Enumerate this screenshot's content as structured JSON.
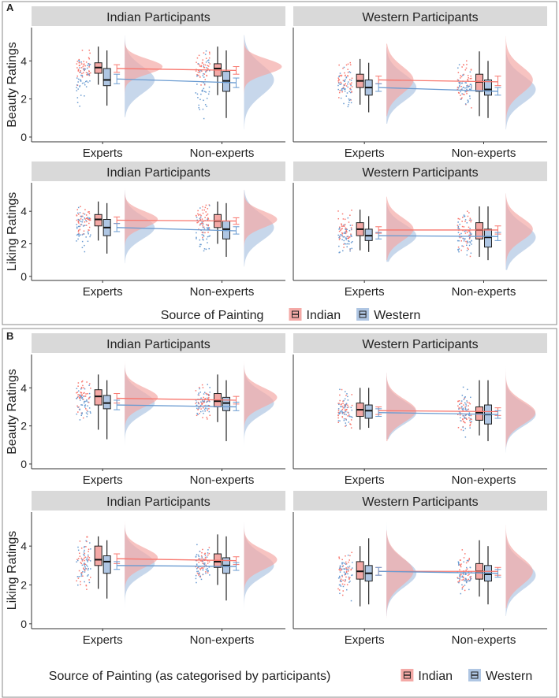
{
  "colors": {
    "indian": "#F8766D",
    "western": "#6A9BD1",
    "indian_fill": "#F4A9A6",
    "western_fill": "#AFC6E3",
    "strip": "#D9D9D9"
  },
  "chart_data": [
    {
      "section": "A",
      "type": "raincloud",
      "legend": {
        "title": "Source of Painting",
        "entries": [
          "Indian",
          "Western"
        ],
        "placement": "bottom"
      },
      "rows": [
        {
          "ylabel": "Beauty Ratings",
          "yticks": [
            "0",
            "2",
            "4"
          ],
          "ylim": [
            0,
            5.5
          ],
          "panels": [
            {
              "title": "Indian Participants",
              "categories": [
                "Experts",
                "Non-experts"
              ],
              "groups": [
                {
                  "indian": {
                    "q1": 3.35,
                    "median": 3.65,
                    "q3": 3.9,
                    "lo": 2.75,
                    "hi": 4.75,
                    "mean": 3.6,
                    "ci": [
                      3.4,
                      3.8
                    ],
                    "mode": 3.7,
                    "sd": 0.4
                  },
                  "western": {
                    "q1": 2.7,
                    "median": 3.0,
                    "q3": 3.6,
                    "lo": 1.65,
                    "hi": 4.55,
                    "mean": 3.05,
                    "ci": [
                      2.8,
                      3.3
                    ],
                    "mode": 3.0,
                    "sd": 0.7
                  }
                },
                {
                  "indian": {
                    "q1": 3.2,
                    "median": 3.6,
                    "q3": 3.85,
                    "lo": 2.2,
                    "hi": 4.75,
                    "mean": 3.5,
                    "ci": [
                      3.3,
                      3.7
                    ],
                    "mode": 3.7,
                    "sd": 0.4
                  },
                  "western": {
                    "q1": 2.4,
                    "median": 2.95,
                    "q3": 3.45,
                    "lo": 1.0,
                    "hi": 4.55,
                    "mean": 2.85,
                    "ci": [
                      2.6,
                      3.1
                    ],
                    "mode": 3.0,
                    "sd": 0.8
                  }
                }
              ]
            },
            {
              "title": "Western Participants",
              "categories": [
                "Experts",
                "Non-experts"
              ],
              "groups": [
                {
                  "indian": {
                    "q1": 2.6,
                    "median": 2.95,
                    "q3": 3.3,
                    "lo": 1.7,
                    "hi": 4.1,
                    "mean": 3.0,
                    "ci": [
                      2.8,
                      3.2
                    ],
                    "mode": 3.0,
                    "sd": 0.7
                  },
                  "western": {
                    "q1": 2.2,
                    "median": 2.6,
                    "q3": 3.0,
                    "lo": 1.3,
                    "hi": 3.9,
                    "mean": 2.6,
                    "ci": [
                      2.4,
                      2.8
                    ],
                    "mode": 2.6,
                    "sd": 0.7
                  }
                },
                {
                  "indian": {
                    "q1": 2.4,
                    "median": 2.9,
                    "q3": 3.3,
                    "lo": 1.1,
                    "hi": 4.5,
                    "mean": 2.9,
                    "ci": [
                      2.7,
                      3.2
                    ],
                    "mode": 3.0,
                    "sd": 0.7
                  },
                  "western": {
                    "q1": 2.2,
                    "median": 2.5,
                    "q3": 3.0,
                    "lo": 1.0,
                    "hi": 4.0,
                    "mean": 2.4,
                    "ci": [
                      2.2,
                      2.6
                    ],
                    "mode": 2.5,
                    "sd": 0.7
                  }
                }
              ]
            }
          ]
        },
        {
          "ylabel": "Liking Ratings",
          "yticks": [
            "0",
            "2",
            "4"
          ],
          "ylim": [
            0,
            5.5
          ],
          "panels": [
            {
              "title": "Indian Participants",
              "categories": [
                "Experts",
                "Non-experts"
              ],
              "groups": [
                {
                  "indian": {
                    "q1": 3.1,
                    "median": 3.5,
                    "q3": 3.8,
                    "lo": 2.2,
                    "hi": 4.6,
                    "mean": 3.45,
                    "ci": [
                      3.25,
                      3.65
                    ],
                    "mode": 3.5,
                    "sd": 0.5
                  },
                  "western": {
                    "q1": 2.5,
                    "median": 3.0,
                    "q3": 3.5,
                    "lo": 1.4,
                    "hi": 4.5,
                    "mean": 3.0,
                    "ci": [
                      2.75,
                      3.25
                    ],
                    "mode": 3.0,
                    "sd": 0.7
                  }
                },
                {
                  "indian": {
                    "q1": 3.0,
                    "median": 3.4,
                    "q3": 3.8,
                    "lo": 2.0,
                    "hi": 4.6,
                    "mean": 3.4,
                    "ci": [
                      3.2,
                      3.6
                    ],
                    "mode": 3.5,
                    "sd": 0.5
                  },
                  "western": {
                    "q1": 2.3,
                    "median": 2.9,
                    "q3": 3.4,
                    "lo": 1.2,
                    "hi": 4.5,
                    "mean": 2.8,
                    "ci": [
                      2.6,
                      3.05
                    ],
                    "mode": 3.0,
                    "sd": 0.8
                  }
                }
              ]
            },
            {
              "title": "Western Participants",
              "categories": [
                "Experts",
                "Non-experts"
              ],
              "groups": [
                {
                  "indian": {
                    "q1": 2.5,
                    "median": 2.9,
                    "q3": 3.3,
                    "lo": 1.6,
                    "hi": 4.1,
                    "mean": 2.85,
                    "ci": [
                      2.65,
                      3.05
                    ],
                    "mode": 2.9,
                    "sd": 0.7
                  },
                  "western": {
                    "q1": 2.2,
                    "median": 2.5,
                    "q3": 2.9,
                    "lo": 1.5,
                    "hi": 3.7,
                    "mean": 2.5,
                    "ci": [
                      2.3,
                      2.7
                    ],
                    "mode": 2.5,
                    "sd": 0.7
                  }
                },
                {
                  "indian": {
                    "q1": 2.3,
                    "median": 2.85,
                    "q3": 3.3,
                    "lo": 1.2,
                    "hi": 4.3,
                    "mean": 2.85,
                    "ci": [
                      2.6,
                      3.1
                    ],
                    "mode": 2.9,
                    "sd": 0.7
                  },
                  "western": {
                    "q1": 1.8,
                    "median": 2.4,
                    "q3": 2.9,
                    "lo": 1.0,
                    "hi": 4.3,
                    "mean": 2.45,
                    "ci": [
                      2.2,
                      2.7
                    ],
                    "mode": 2.4,
                    "sd": 0.8
                  }
                }
              ]
            }
          ]
        }
      ]
    },
    {
      "section": "B",
      "type": "raincloud",
      "legend": {
        "title": "Source of Painting (as categorised by participants)",
        "entries": [
          "Indian",
          "Western"
        ],
        "placement": "bottom"
      },
      "rows": [
        {
          "ylabel": "Beauty Ratings",
          "yticks": [
            "0",
            "2",
            "4"
          ],
          "ylim": [
            0,
            5.5
          ],
          "panels": [
            {
              "title": "Indian Participants",
              "categories": [
                "Experts",
                "Non-experts"
              ],
              "groups": [
                {
                  "indian": {
                    "q1": 3.1,
                    "median": 3.55,
                    "q3": 3.9,
                    "lo": 1.8,
                    "hi": 4.7,
                    "mean": 3.45,
                    "ci": [
                      3.2,
                      3.7
                    ],
                    "mode": 3.5,
                    "sd": 0.5
                  },
                  "western": {
                    "q1": 2.9,
                    "median": 3.2,
                    "q3": 3.6,
                    "lo": 1.3,
                    "hi": 4.4,
                    "mean": 3.1,
                    "ci": [
                      2.85,
                      3.35
                    ],
                    "mode": 3.2,
                    "sd": 0.6
                  }
                },
                {
                  "indian": {
                    "q1": 3.0,
                    "median": 3.3,
                    "q3": 3.7,
                    "lo": 2.2,
                    "hi": 4.7,
                    "mean": 3.35,
                    "ci": [
                      3.15,
                      3.55
                    ],
                    "mode": 3.5,
                    "sd": 0.5
                  },
                  "western": {
                    "q1": 2.8,
                    "median": 3.2,
                    "q3": 3.5,
                    "lo": 1.2,
                    "hi": 4.4,
                    "mean": 3.0,
                    "ci": [
                      2.8,
                      3.25
                    ],
                    "mode": 3.2,
                    "sd": 0.6
                  }
                }
              ]
            },
            {
              "title": "Western Participants",
              "categories": [
                "Experts",
                "Non-experts"
              ],
              "groups": [
                {
                  "indian": {
                    "q1": 2.5,
                    "median": 2.85,
                    "q3": 3.2,
                    "lo": 1.8,
                    "hi": 4.0,
                    "mean": 2.8,
                    "ci": [
                      2.6,
                      3.0
                    ],
                    "mode": 2.8,
                    "sd": 0.6
                  },
                  "western": {
                    "q1": 2.4,
                    "median": 2.8,
                    "q3": 3.1,
                    "lo": 1.9,
                    "hi": 4.0,
                    "mean": 2.7,
                    "ci": [
                      2.5,
                      2.9
                    ],
                    "mode": 2.7,
                    "sd": 0.6
                  }
                },
                {
                  "indian": {
                    "q1": 2.3,
                    "median": 2.7,
                    "q3": 3.0,
                    "lo": 1.5,
                    "hi": 4.4,
                    "mean": 2.75,
                    "ci": [
                      2.55,
                      2.95
                    ],
                    "mode": 2.7,
                    "sd": 0.6
                  },
                  "western": {
                    "q1": 2.1,
                    "median": 2.6,
                    "q3": 3.1,
                    "lo": 1.2,
                    "hi": 4.4,
                    "mean": 2.6,
                    "ci": [
                      2.4,
                      2.8
                    ],
                    "mode": 2.6,
                    "sd": 0.6
                  }
                }
              ]
            }
          ]
        },
        {
          "ylabel": "Liking Ratings",
          "yticks": [
            "0",
            "2",
            "4"
          ],
          "ylim": [
            0,
            5.5
          ],
          "panels": [
            {
              "title": "Indian Participants",
              "categories": [
                "Experts",
                "Non-experts"
              ],
              "groups": [
                {
                  "indian": {
                    "q1": 3.0,
                    "median": 3.3,
                    "q3": 4.0,
                    "lo": 1.8,
                    "hi": 4.5,
                    "mean": 3.35,
                    "ci": [
                      3.1,
                      3.6
                    ],
                    "mode": 3.4,
                    "sd": 0.5
                  },
                  "western": {
                    "q1": 2.6,
                    "median": 3.2,
                    "q3": 3.5,
                    "lo": 1.3,
                    "hi": 4.3,
                    "mean": 3.0,
                    "ci": [
                      2.8,
                      3.2
                    ],
                    "mode": 3.1,
                    "sd": 0.6
                  }
                },
                {
                  "indian": {
                    "q1": 2.9,
                    "median": 3.2,
                    "q3": 3.6,
                    "lo": 2.0,
                    "hi": 4.6,
                    "mean": 3.25,
                    "ci": [
                      3.05,
                      3.45
                    ],
                    "mode": 3.3,
                    "sd": 0.5
                  },
                  "western": {
                    "q1": 2.6,
                    "median": 3.0,
                    "q3": 3.4,
                    "lo": 1.2,
                    "hi": 4.5,
                    "mean": 2.95,
                    "ci": [
                      2.75,
                      3.15
                    ],
                    "mode": 3.0,
                    "sd": 0.6
                  }
                }
              ]
            },
            {
              "title": "Western Participants",
              "categories": [
                "Experts",
                "Non-experts"
              ],
              "groups": [
                {
                  "indian": {
                    "q1": 2.3,
                    "median": 2.7,
                    "q3": 3.2,
                    "lo": 0.9,
                    "hi": 4.0,
                    "mean": 2.7,
                    "ci": [
                      2.5,
                      2.9
                    ],
                    "mode": 2.7,
                    "sd": 0.7
                  },
                  "western": {
                    "q1": 2.2,
                    "median": 2.6,
                    "q3": 3.0,
                    "lo": 1.0,
                    "hi": 4.4,
                    "mean": 2.7,
                    "ci": [
                      2.5,
                      2.9
                    ],
                    "mode": 2.6,
                    "sd": 0.7
                  }
                },
                {
                  "indian": {
                    "q1": 2.3,
                    "median": 2.7,
                    "q3": 3.1,
                    "lo": 1.4,
                    "hi": 4.3,
                    "mean": 2.7,
                    "ci": [
                      2.5,
                      2.9
                    ],
                    "mode": 2.7,
                    "sd": 0.7
                  },
                  "western": {
                    "q1": 2.2,
                    "median": 2.55,
                    "q3": 3.0,
                    "lo": 1.0,
                    "hi": 4.0,
                    "mean": 2.6,
                    "ci": [
                      2.4,
                      2.8
                    ],
                    "mode": 2.5,
                    "sd": 0.7
                  }
                }
              ]
            }
          ]
        }
      ]
    }
  ]
}
